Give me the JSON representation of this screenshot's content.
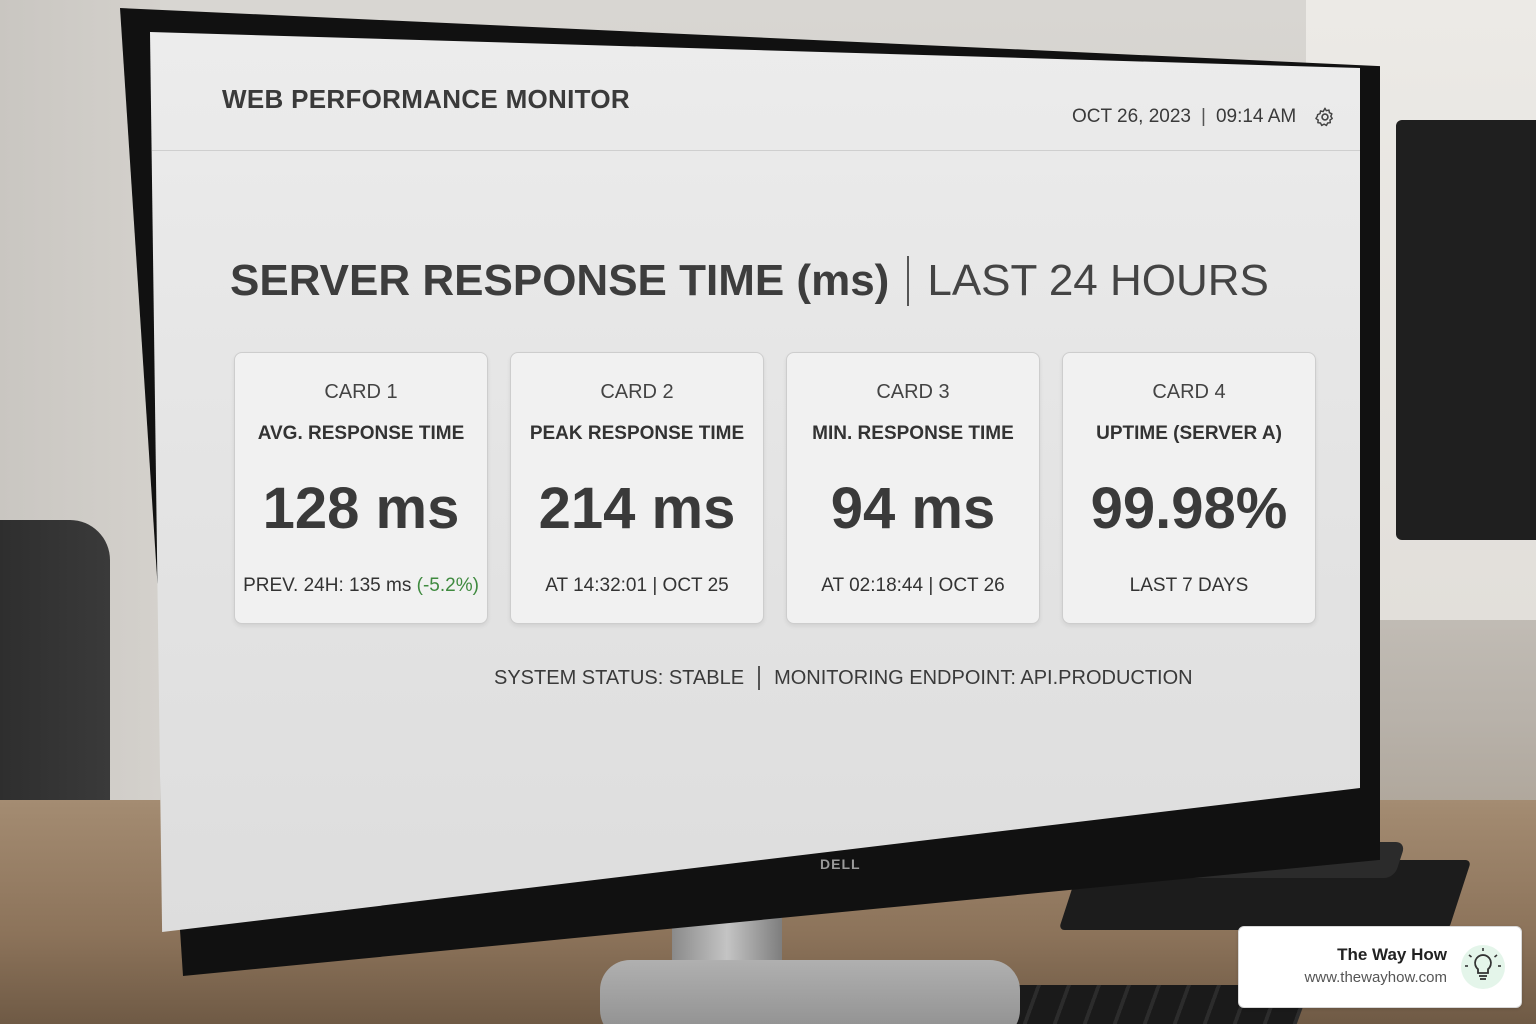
{
  "header": {
    "app_title": "WEB PERFORMANCE MONITOR",
    "date": "OCT 26, 2023",
    "separator": "|",
    "time": "09:14 AM",
    "settings_icon": "gear-icon"
  },
  "panel": {
    "title": "SERVER RESPONSE TIME (ms)",
    "range": "LAST 24 HOURS"
  },
  "cards": [
    {
      "number": "CARD 1",
      "label": "AVG. RESPONSE TIME",
      "value": "128 ms",
      "foot": "PREV. 24H: 135 ms",
      "delta": "(-5.2%)"
    },
    {
      "number": "CARD 2",
      "label": "PEAK RESPONSE TIME",
      "value": "214 ms",
      "foot": "AT 14:32:01 | OCT 25"
    },
    {
      "number": "CARD 3",
      "label": "MIN. RESPONSE TIME",
      "value": "94 ms",
      "foot": "AT 02:18:44 | OCT 26"
    },
    {
      "number": "CARD 4",
      "label": "UPTIME (SERVER A)",
      "value": "99.98%",
      "foot": "LAST 7 DAYS"
    }
  ],
  "footer": {
    "status": "SYSTEM STATUS: STABLE",
    "endpoint": "MONITORING ENDPOINT: API.PRODUCTION"
  },
  "monitor_brand": "DELL",
  "watermark": {
    "brand": "The Way How",
    "url": "www.thewayhow.com",
    "icon": "lightbulb-icon"
  },
  "colors": {
    "delta_positive": "#3f8a3f",
    "screen_bg": "#e6e6e6"
  }
}
